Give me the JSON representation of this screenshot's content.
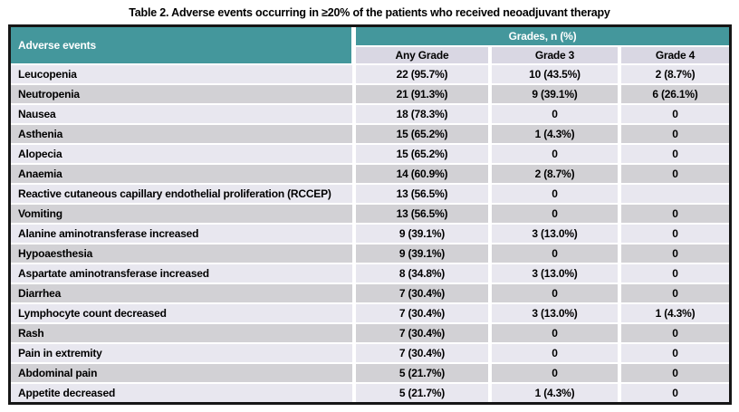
{
  "title": "Table 2. Adverse events occurring in ≥20% of the patients who received neoadjuvant therapy",
  "table": {
    "row_header": "Adverse events",
    "group_header": "Grades, n (%)",
    "columns": [
      "Any Grade",
      "Grade 3",
      "Grade 4"
    ],
    "rows": [
      {
        "label": "Leucopenia",
        "any_grade": "22 (95.7%)",
        "grade_3": "10 (43.5%)",
        "grade_4": "2 (8.7%)"
      },
      {
        "label": "Neutropenia",
        "any_grade": "21 (91.3%)",
        "grade_3": "9 (39.1%)",
        "grade_4": "6 (26.1%)"
      },
      {
        "label": "Nausea",
        "any_grade": "18 (78.3%)",
        "grade_3": "0",
        "grade_4": "0"
      },
      {
        "label": "Asthenia",
        "any_grade": "15 (65.2%)",
        "grade_3": "1 (4.3%)",
        "grade_4": "0"
      },
      {
        "label": "Alopecia",
        "any_grade": "15 (65.2%)",
        "grade_3": "0",
        "grade_4": "0"
      },
      {
        "label": "Anaemia",
        "any_grade": "14 (60.9%)",
        "grade_3": "2 (8.7%)",
        "grade_4": "0"
      },
      {
        "label": "Reactive cutaneous capillary endothelial proliferation (RCCEP)",
        "any_grade": "13 (56.5%)",
        "grade_3": "0",
        "grade_4": ""
      },
      {
        "label": "Vomiting",
        "any_grade": "13 (56.5%)",
        "grade_3": "0",
        "grade_4": "0"
      },
      {
        "label": "Alanine aminotransferase increased",
        "any_grade": "9 (39.1%)",
        "grade_3": "3 (13.0%)",
        "grade_4": "0"
      },
      {
        "label": "Hypoaesthesia",
        "any_grade": "9 (39.1%)",
        "grade_3": "0",
        "grade_4": "0"
      },
      {
        "label": "Aspartate aminotransferase increased",
        "any_grade": "8 (34.8%)",
        "grade_3": "3 (13.0%)",
        "grade_4": "0"
      },
      {
        "label": "Diarrhea",
        "any_grade": "7 (30.4%)",
        "grade_3": "0",
        "grade_4": "0"
      },
      {
        "label": "Lymphocyte count decreased",
        "any_grade": "7 (30.4%)",
        "grade_3": "3 (13.0%)",
        "grade_4": "1 (4.3%)"
      },
      {
        "label": "Rash",
        "any_grade": "7 (30.4%)",
        "grade_3": "0",
        "grade_4": "0"
      },
      {
        "label": "Pain in extremity",
        "any_grade": "7 (30.4%)",
        "grade_3": "0",
        "grade_4": "0"
      },
      {
        "label": "Abdominal pain",
        "any_grade": "5 (21.7%)",
        "grade_3": "0",
        "grade_4": "0"
      },
      {
        "label": "Appetite decreased",
        "any_grade": "5 (21.7%)",
        "grade_3": "1 (4.3%)",
        "grade_4": "0"
      }
    ]
  },
  "colors": {
    "header_teal": "#44979c",
    "subheader_lavender": "#d9d7e3",
    "row_light": "#e8e7ef",
    "row_dark": "#d2d1d5",
    "border_black": "#161616"
  }
}
